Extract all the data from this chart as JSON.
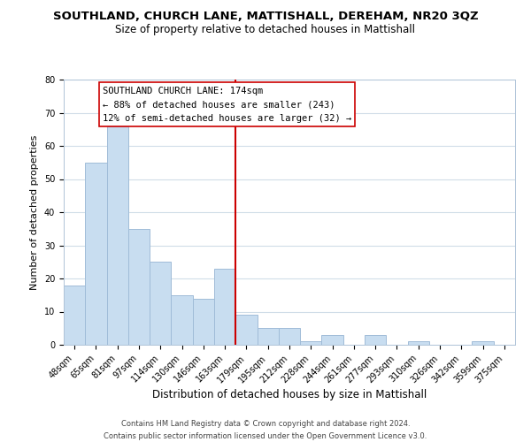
{
  "title": "SOUTHLAND, CHURCH LANE, MATTISHALL, DEREHAM, NR20 3QZ",
  "subtitle": "Size of property relative to detached houses in Mattishall",
  "xlabel": "Distribution of detached houses by size in Mattishall",
  "ylabel": "Number of detached properties",
  "bar_labels": [
    "48sqm",
    "65sqm",
    "81sqm",
    "97sqm",
    "114sqm",
    "130sqm",
    "146sqm",
    "163sqm",
    "179sqm",
    "195sqm",
    "212sqm",
    "228sqm",
    "244sqm",
    "261sqm",
    "277sqm",
    "293sqm",
    "310sqm",
    "326sqm",
    "342sqm",
    "359sqm",
    "375sqm"
  ],
  "bar_heights": [
    18,
    55,
    66,
    35,
    25,
    15,
    14,
    23,
    9,
    5,
    5,
    1,
    3,
    0,
    3,
    0,
    1,
    0,
    0,
    1,
    0
  ],
  "bar_color": "#c8ddf0",
  "bar_edge_color": "#a0bcd8",
  "vline_color": "#cc0000",
  "annotation_title": "SOUTHLAND CHURCH LANE: 174sqm",
  "annotation_line1": "← 88% of detached houses are smaller (243)",
  "annotation_line2": "12% of semi-detached houses are larger (32) →",
  "annotation_box_color": "#ffffff",
  "annotation_box_edge": "#cc0000",
  "ylim": [
    0,
    80
  ],
  "yticks": [
    0,
    10,
    20,
    30,
    40,
    50,
    60,
    70,
    80
  ],
  "footer_line1": "Contains HM Land Registry data © Crown copyright and database right 2024.",
  "footer_line2": "Contains public sector information licensed under the Open Government Licence v3.0.",
  "background_color": "#ffffff",
  "grid_color": "#d0dde8",
  "title_fontsize": 9.5,
  "subtitle_fontsize": 8.5,
  "xlabel_fontsize": 8.5,
  "ylabel_fontsize": 8,
  "tick_fontsize": 7,
  "annotation_fontsize": 7.5,
  "footer_fontsize": 6.0
}
